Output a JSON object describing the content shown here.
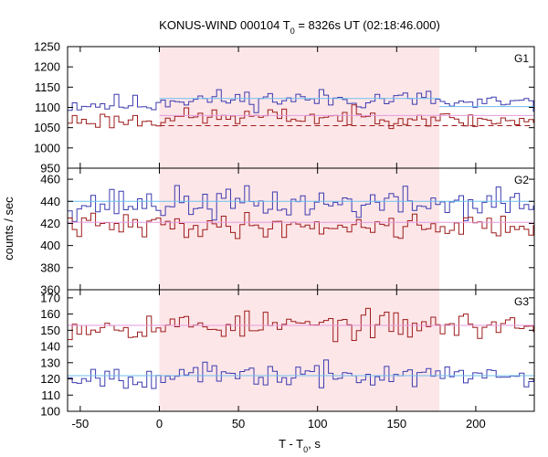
{
  "chart_data": {
    "type": "line",
    "title": {
      "prefix": "KONUS-WIND 000104 T",
      "sub": "0",
      "suffix": " = 8326s UT (02:18:46.000)"
    },
    "xlabel": {
      "prefix": "T - T",
      "sub": "0",
      "suffix": ", s"
    },
    "ylabel": "counts / sec",
    "xlim": [
      -58,
      237
    ],
    "x_ticks": [
      -50,
      0,
      50,
      100,
      150,
      200
    ],
    "highlight_interval": [
      0,
      177
    ],
    "colors": {
      "highlight": "#fde6e8",
      "blue_series": "#3b3bb0",
      "red_series": "#9e1b1b",
      "blue_fit": "#6fc0ee",
      "red_fit": "#e59ae0",
      "dashed": "#9e1b1b"
    },
    "panels": [
      {
        "label": "G1",
        "ylim": [
          950,
          1250
        ],
        "y_ticks": [
          950,
          1000,
          1050,
          1100,
          1150,
          1200,
          1250
        ],
        "series": [
          {
            "color_key": "blue_series",
            "mean": 1108,
            "amp": 20,
            "seed": 11,
            "bump": 12
          },
          {
            "color_key": "red_series",
            "mean": 1068,
            "amp": 18,
            "seed": 23,
            "bump": 8
          }
        ],
        "fits": [
          {
            "color_key": "blue_fit",
            "value": 1122,
            "x_from": 0,
            "x_to": 177
          },
          {
            "color_key": "blue_fit",
            "value": 1102,
            "x_from": 177,
            "x_to": 237
          },
          {
            "color_key": "red_fit",
            "value": 1080,
            "x_from": 0,
            "x_to": 237
          }
        ],
        "dashed": {
          "value": 1055,
          "x_from": 0,
          "x_to": 237
        }
      },
      {
        "label": "G2",
        "ylim": [
          360,
          470
        ],
        "y_ticks": [
          360,
          380,
          400,
          420,
          440,
          460
        ],
        "series": [
          {
            "color_key": "blue_series",
            "mean": 438,
            "amp": 12,
            "seed": 37,
            "bump": 0
          },
          {
            "color_key": "red_series",
            "mean": 418,
            "amp": 9,
            "seed": 41,
            "bump": 0
          }
        ],
        "fits": [
          {
            "color_key": "blue_fit",
            "value": 440,
            "x_from": -58,
            "x_to": 237
          },
          {
            "color_key": "red_fit",
            "value": 421,
            "x_from": -58,
            "x_to": 237
          }
        ],
        "dashed": null
      },
      {
        "label": "G3",
        "ylim": [
          100,
          175
        ],
        "y_ticks": [
          100,
          110,
          120,
          130,
          140,
          150,
          160,
          170
        ],
        "series": [
          {
            "color_key": "red_series",
            "mean": 153,
            "amp": 7,
            "seed": 53,
            "bump": 0
          },
          {
            "color_key": "blue_series",
            "mean": 122,
            "amp": 6,
            "seed": 67,
            "bump": 0
          }
        ],
        "fits": [
          {
            "color_key": "red_fit",
            "value": 153,
            "x_from": -58,
            "x_to": 237
          },
          {
            "color_key": "blue_fit",
            "value": 122,
            "x_from": -58,
            "x_to": 237
          }
        ],
        "dashed": null
      }
    ],
    "bin_width": 2.944
  }
}
